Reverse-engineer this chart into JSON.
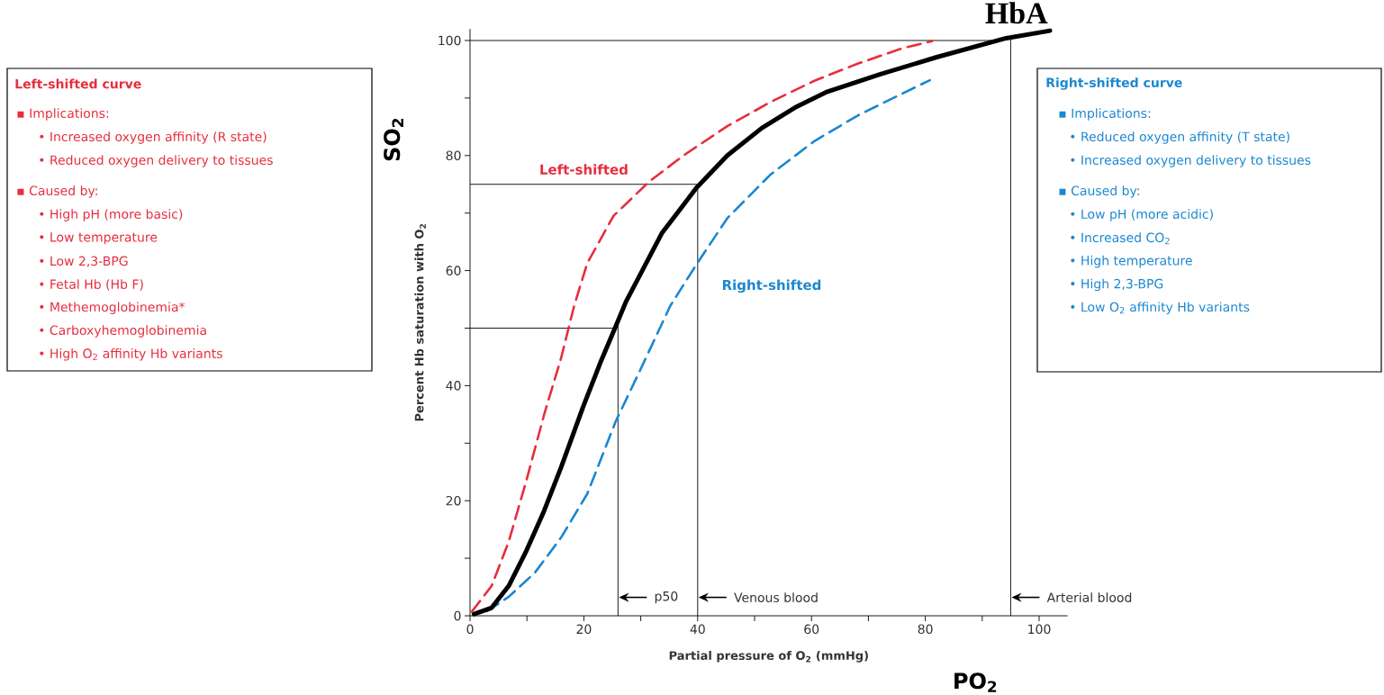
{
  "chart_data": {
    "type": "line",
    "xlabel": "Partial pressure of O$_{2}$ (mmHg)",
    "ylabel": "Percent Hb saturation with O$_{2}$",
    "xlim": [
      0,
      105
    ],
    "ylim": [
      0,
      102
    ],
    "xticks": [
      0,
      {
        "value": 10,
        "label": null
      },
      20,
      {
        "value": 30,
        "label": null
      },
      40,
      {
        "value": 50,
        "label": null
      },
      60,
      {
        "value": 70,
        "label": null
      },
      80,
      {
        "value": 90,
        "label": null
      },
      100
    ],
    "yticks": [
      0,
      {
        "value": 10,
        "label": null
      },
      20,
      {
        "value": 30,
        "label": null
      },
      40,
      {
        "value": 50,
        "label": null
      },
      60,
      {
        "value": 70,
        "label": null
      },
      80,
      {
        "value": 90,
        "label": null
      },
      100
    ],
    "series": [
      {
        "name": "HbA",
        "color": "#000000",
        "line_style": "solid",
        "x": [
          0.7,
          3.8,
          6.8,
          9.9,
          13,
          16,
          19.9,
          22.9,
          25.6,
          27.4,
          33.7,
          39.8,
          45.2,
          51.3,
          57.4,
          62.8,
          72,
          82,
          94.2,
          101.9
        ],
        "values": [
          0.3,
          1.4,
          5.2,
          11.3,
          18.2,
          25.8,
          36.4,
          44,
          50.3,
          54.6,
          66.5,
          74.4,
          80,
          84.8,
          88.5,
          91.1,
          94.1,
          97.1,
          100.4,
          101.7
        ]
      },
      {
        "name": "Left-shifted",
        "color": "#e62e3d",
        "line_style": "dashed",
        "x": [
          0.3,
          3.8,
          6.8,
          9.9,
          13,
          16,
          18.3,
          20.6,
          25.2,
          31.4,
          37.5,
          45.2,
          52.8,
          60.5,
          68.2,
          75.8,
          81.2
        ],
        "values": [
          0.7,
          5.2,
          12.9,
          23.5,
          34.9,
          44.8,
          53.9,
          61.3,
          69.5,
          75.4,
          80,
          85.1,
          89.3,
          93,
          96,
          98.6,
          99.9
        ]
      },
      {
        "name": "Right-shifted",
        "color": "#1b87cf",
        "line_style": "dashed",
        "x": [
          3,
          6.8,
          11.4,
          16,
          20.6,
          25.6,
          29.8,
          35.2,
          39.8,
          45.2,
          52.8,
          60.5,
          68.2,
          75.8,
          80.8
        ],
        "values": [
          0.8,
          3.3,
          7.5,
          13.6,
          21.2,
          33.8,
          42.5,
          53.9,
          61.1,
          69.1,
          76.7,
          82.5,
          87,
          90.7,
          93.1
        ]
      }
    ],
    "ref_lines": [
      {
        "axis": "x",
        "value": 26,
        "label": "p50"
      },
      {
        "axis": "x",
        "value": 40,
        "label": "Venous blood"
      },
      {
        "axis": "x",
        "value": 95,
        "label": "Arterial blood"
      },
      {
        "axis": "y",
        "value": 50
      },
      {
        "axis": "y",
        "value": 75
      },
      {
        "axis": "y",
        "value": 100
      }
    ],
    "annotations": [
      "SO$_{2}$",
      "PO$_{2}$",
      "Left-shifted curve",
      "▪ Implications:",
      "• Increased oxygen affinity (R state)",
      "• Reduced oxygen delivery to tissues",
      "▪ Caused by:",
      "• High pH (more basic)",
      "• Low temperature",
      "• Low 2,3-BPG",
      "• Fetal Hb (Hb F)",
      "• Methemoglobinemia*",
      "• Carboxyhemoglobinemia",
      "• High O$_{2}$ affinity Hb variants",
      "Right-shifted curve",
      "▪ Implications:",
      "• Reduced oxygen affinity (T state)",
      "• Increased oxygen delivery to tissues",
      "▪ Caused by:",
      "• Low pH (more acidic)",
      "• Increased CO$_{2}$",
      "• High temperature",
      "• High 2,3-BPG",
      "• Low O$_{2}$ affinity Hb variants"
    ]
  }
}
